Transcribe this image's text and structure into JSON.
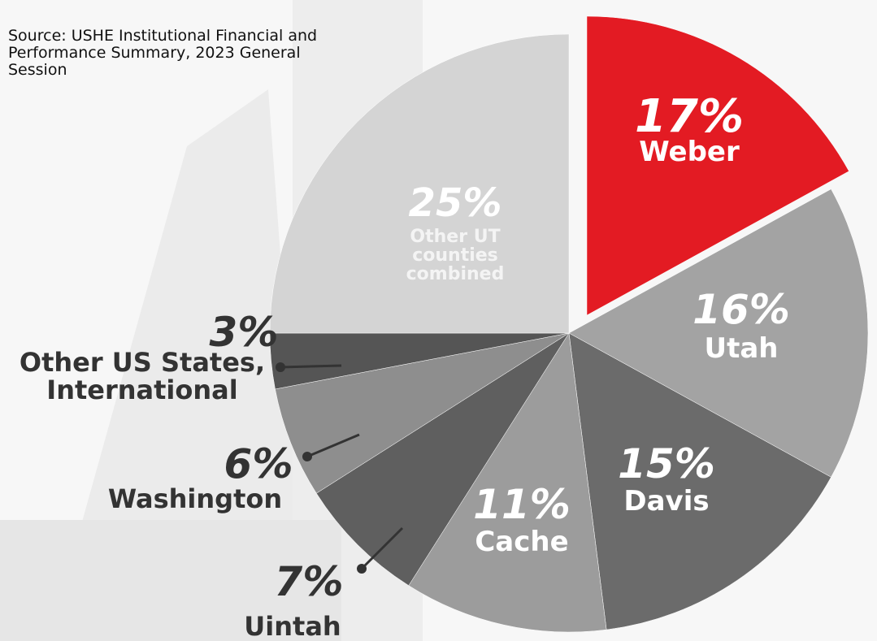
{
  "chart_data": {
    "type": "pie",
    "source": "Source: USHE Institutional Financial and Performance Summary, 2023 General Session",
    "categories": [
      "Weber",
      "Utah",
      "Davis",
      "Cache",
      "Uintah",
      "Washington",
      "Other US States, International",
      "Other UT counties combined"
    ],
    "values": [
      17,
      16,
      15,
      11,
      7,
      6,
      3,
      25
    ],
    "value_labels": [
      "17%",
      "16%",
      "15%",
      "11%",
      "7%",
      "6%",
      "3%",
      "25%"
    ],
    "colors": [
      "#e31b23",
      "#a3a3a3",
      "#6b6b6b",
      "#9c9c9c",
      "#5f5f5f",
      "#8e8e8e",
      "#555555",
      "#d4d4d4"
    ]
  }
}
